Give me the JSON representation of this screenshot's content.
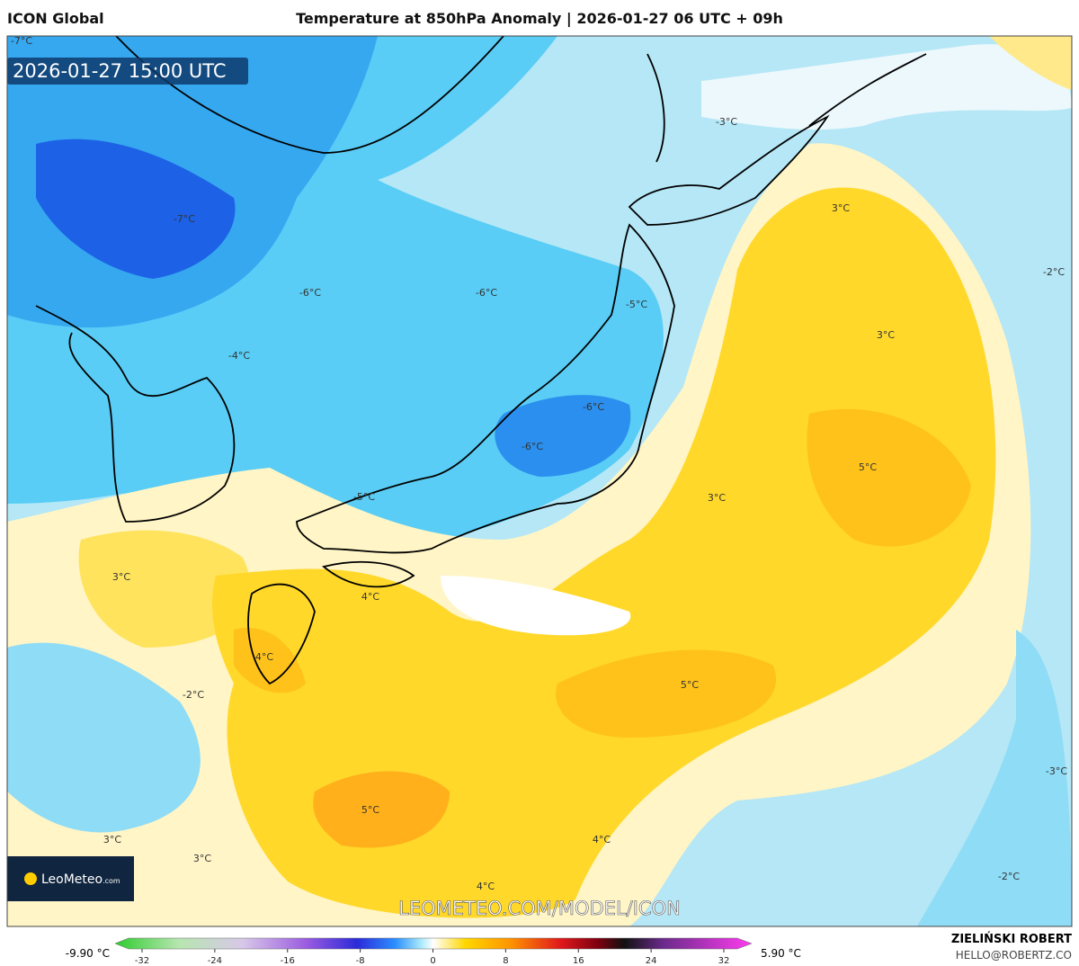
{
  "header": {
    "model": "ICON Global",
    "title": "Temperature at 850hPa Anomaly | 2026-01-27 06 UTC + 09h"
  },
  "map": {
    "timestamp": "2026-01-27 15:00 UTC",
    "contour_labels": [
      "-7°C",
      "-3°C",
      "-7°C",
      "3°C",
      "-2°C",
      "-6°C",
      "-6°C",
      "-5°C",
      "3°C",
      "-4°C",
      "-6°C",
      "-6°C",
      "5°C",
      "-5°C",
      "3°C",
      "3°C",
      "4°C",
      "4°C",
      "-2°C",
      "5°C",
      "-3°C",
      "5°C",
      "3°C",
      "4°C",
      "3°C",
      "-2°C",
      "4°C"
    ],
    "logo": "LeoMeteo",
    "logo_suffix": ".com",
    "watermark": "LEOMETEO.COM/MODEL/ICON"
  },
  "colorbar": {
    "min_label": "-9.90 °C",
    "max_label": "5.90 °C",
    "ticks": [
      -32,
      -24,
      -16,
      -8,
      0,
      8,
      16,
      24,
      32
    ]
  },
  "footer": {
    "author": "ZIELIŃSKI ROBERT",
    "email": "HELLO@ROBERTZ.CO"
  }
}
